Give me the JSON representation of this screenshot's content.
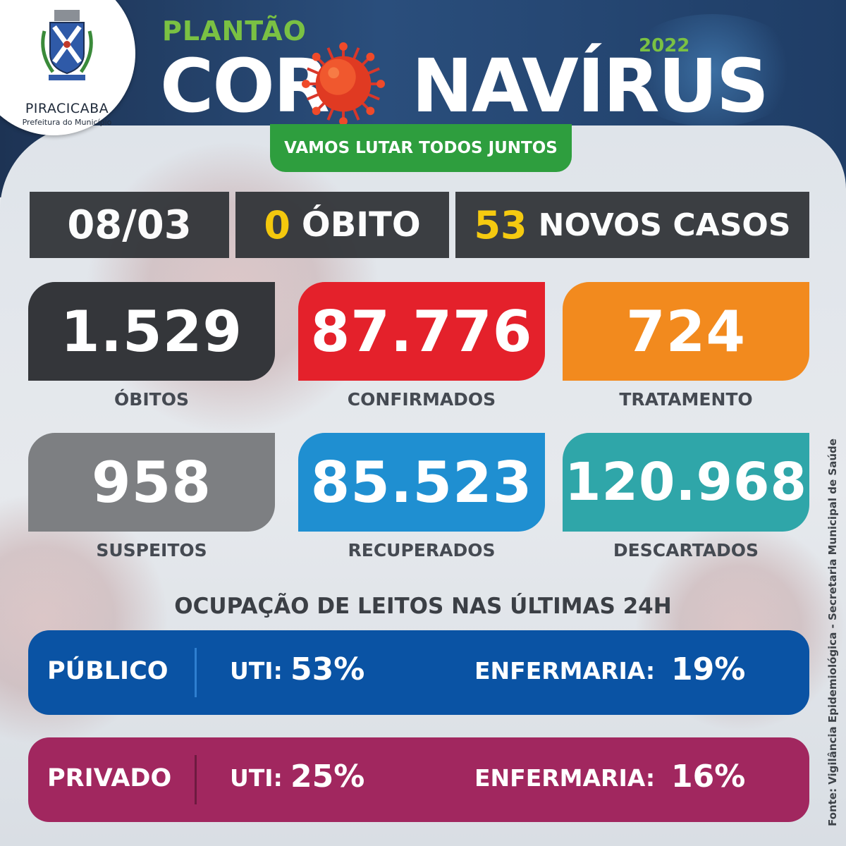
{
  "logo": {
    "name": "PIRACICABA",
    "subtitle": "Prefeitura do Município"
  },
  "header": {
    "kicker": "PLANTÃO",
    "title_part1": "COR",
    "title_part2": "NAVÍRUS",
    "year": "2022",
    "tagline": "VAMOS LUTAR TODOS JUNTOS"
  },
  "daily": {
    "date": "08/03",
    "deaths_value": "0",
    "deaths_label": "ÓBITO",
    "new_cases_value": "53",
    "new_cases_label": "NOVOS CASOS"
  },
  "stats": [
    {
      "value": "1.529",
      "label": "ÓBITOS",
      "color": "#34363a"
    },
    {
      "value": "87.776",
      "label": "CONFIRMADOS",
      "color": "#e4212b"
    },
    {
      "value": "724",
      "label": "TRATAMENTO",
      "color": "#f28a1e"
    },
    {
      "value": "958",
      "label": "SUSPEITOS",
      "color": "#7d7f82"
    },
    {
      "value": "85.523",
      "label": "RECUPERADOS",
      "color": "#1f8fd1"
    },
    {
      "value": "120.968",
      "label": "DESCARTADOS",
      "color": "#2fa6a9"
    }
  ],
  "beds": {
    "title": "OCUPAÇÃO DE LEITOS NAS ÚLTIMAS 24H",
    "rows": [
      {
        "type": "PÚBLICO",
        "uti_label": "UTI:",
        "uti_value": "53%",
        "enf_label": "ENFERMARIA:",
        "enf_value": "19%",
        "color": "#0a53a4",
        "sep_color": "#2f7fd0"
      },
      {
        "type": "PRIVADO",
        "uti_label": "UTI:",
        "uti_value": "25%",
        "enf_label": "ENFERMARIA:",
        "enf_value": "16%",
        "color": "#a1275f",
        "sep_color": "#6e1a40"
      }
    ]
  },
  "source": "Fonte: Vigilância Epidemiológica - Secretaria Municipal de Saúde"
}
